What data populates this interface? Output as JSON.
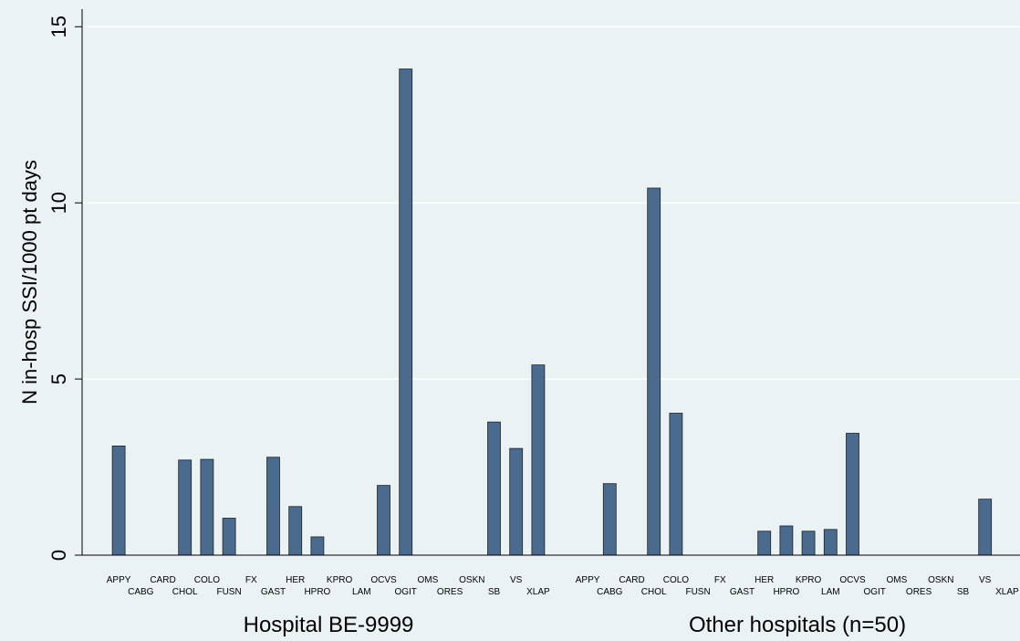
{
  "chart_data": {
    "type": "bar",
    "ylabel": "N in-hosp SSI/1000 pt days",
    "ylim": [
      0,
      15.5
    ],
    "yticks": [
      0,
      5,
      10,
      15
    ],
    "grid": true,
    "bar_color": "#4a6a8e",
    "background": "#eaf2f3",
    "groups": [
      {
        "name": "Hospital BE-9999",
        "categories": [
          "APPY",
          "CABG",
          "CARD",
          "CHOL",
          "COLO",
          "FUSN",
          "FX",
          "GAST",
          "HER",
          "HPRO",
          "KPRO",
          "LAM",
          "OCVS",
          "OGIT",
          "OMS",
          "ORES",
          "OSKN",
          "SB",
          "VS",
          "XLAP"
        ],
        "values": [
          3.1,
          0,
          0,
          2.7,
          2.72,
          1.05,
          0,
          2.78,
          1.38,
          0.52,
          0,
          0,
          1.98,
          13.8,
          0,
          0,
          0,
          3.78,
          3.03,
          5.4
        ]
      },
      {
        "name": "Other hospitals (n=50)",
        "categories": [
          "APPY",
          "CABG",
          "CARD",
          "CHOL",
          "COLO",
          "FUSN",
          "FX",
          "GAST",
          "HER",
          "HPRO",
          "KPRO",
          "LAM",
          "OCVS",
          "OGIT",
          "OMS",
          "ORES",
          "OSKN",
          "SB",
          "VS",
          "XLAP"
        ],
        "values": [
          0,
          2.03,
          0,
          10.42,
          4.03,
          0,
          0,
          0,
          0.68,
          0.83,
          0.68,
          0.73,
          3.46,
          0,
          0,
          0,
          0,
          0,
          1.59,
          0
        ]
      }
    ]
  }
}
